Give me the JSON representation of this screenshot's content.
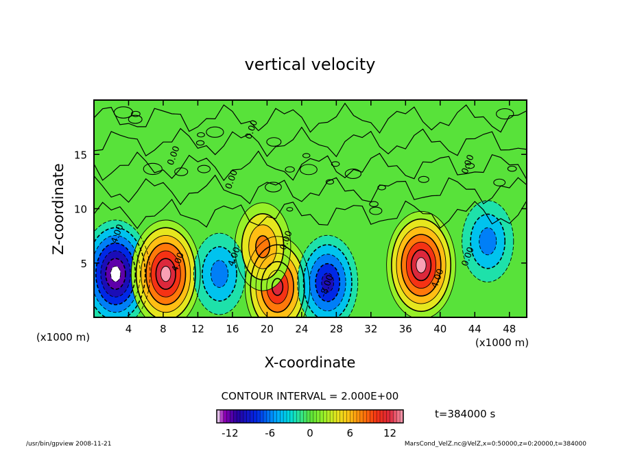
{
  "chart_data": {
    "type": "heatmap",
    "title": "vertical velocity",
    "xlabel": "X-coordinate",
    "ylabel": "Z-coordinate",
    "x_unit_left": "(x1000 m)",
    "x_unit_right": "(x1000 m)",
    "xlim": [
      0,
      50
    ],
    "ylim": [
      0,
      20
    ],
    "x_ticks": [
      "4",
      "8",
      "12",
      "16",
      "20",
      "24",
      "28",
      "32",
      "36",
      "40",
      "44",
      "48"
    ],
    "x_tick_values": [
      4,
      8,
      12,
      16,
      20,
      24,
      28,
      32,
      36,
      40,
      44,
      48
    ],
    "y_ticks": [
      "5",
      "10",
      "15"
    ],
    "y_tick_values": [
      5,
      10,
      15
    ],
    "contour_interval_label": "CONTOUR INTERVAL = 2.000E+00",
    "time_label": "t=384000 s",
    "colorbar": {
      "min": -14,
      "max": 14,
      "tick_labels": [
        "-12",
        "-6",
        "0",
        "6",
        "12"
      ],
      "tick_values": [
        -12,
        -6,
        0,
        6,
        12
      ]
    },
    "contour_labels": [
      {
        "text": "0.00",
        "x": 18.5,
        "z": 17.2
      },
      {
        "text": "0.00",
        "x": 9.5,
        "z": 14.8
      },
      {
        "text": "0.00",
        "x": 16.2,
        "z": 12.6
      },
      {
        "text": "0.00",
        "x": 43.5,
        "z": 14.0
      },
      {
        "text": "4.00",
        "x": 3.0,
        "z": 7.6
      },
      {
        "text": "4.00",
        "x": 10.0,
        "z": 5.0
      },
      {
        "text": "4.00",
        "x": 16.5,
        "z": 5.5
      },
      {
        "text": "0.00",
        "x": 22.5,
        "z": 7.0
      },
      {
        "text": "-8.00",
        "x": 27.2,
        "z": 2.8
      },
      {
        "text": "4.00",
        "x": 40.0,
        "z": 3.5
      },
      {
        "text": "0.00",
        "x": 43.5,
        "z": 5.5
      }
    ],
    "extrema": [
      {
        "x": 2.5,
        "z": 4.0,
        "value": -14
      },
      {
        "x": 8.3,
        "z": 4.0,
        "value": 14
      },
      {
        "x": 21.2,
        "z": 2.8,
        "value": 12
      },
      {
        "x": 19.5,
        "z": 6.5,
        "value": 8
      },
      {
        "x": 27.0,
        "z": 3.2,
        "value": -10
      },
      {
        "x": 37.8,
        "z": 4.8,
        "value": 13
      },
      {
        "x": 14.5,
        "z": 4.0,
        "value": -6
      },
      {
        "x": 45.5,
        "z": 7.0,
        "value": -5
      }
    ]
  },
  "footer": {
    "left": "/usr/bin/gpview  2008-11-21",
    "right": "MarsCond_VelZ.nc@VelZ,x=0:50000,z=0:20000,t=384000"
  }
}
